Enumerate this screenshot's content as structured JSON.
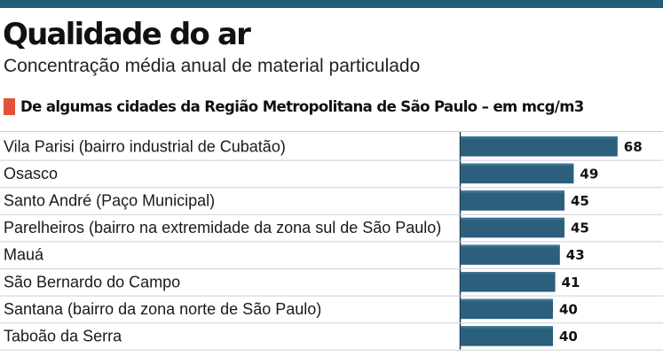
{
  "header": {
    "title": "Qualidade do ar",
    "subtitle": "Concentração média anual de material particulado"
  },
  "section": {
    "label": "De algumas cidades da Região Metropolitana de São Paulo – em mcg/m3"
  },
  "colors": {
    "top_bar": "#1f5d78",
    "bar": "#2c5f7c",
    "bar_highlight": "#3a7493",
    "marker": "#e0533a",
    "separator": "#c9d1d6",
    "panel_edge": "#1f3f52"
  },
  "chart_data": {
    "type": "bar",
    "orientation": "horizontal",
    "title": "Qualidade do ar",
    "subtitle": "Concentração média anual de material particulado",
    "unit": "mcg/m3",
    "categories": [
      "Vila Parisi (bairro industrial de Cubatão)",
      "Osasco",
      "Santo André (Paço Municipal)",
      "Parelheiros (bairro na extremidade da zona sul de São Paulo)",
      "Mauá",
      "São Bernardo do Campo",
      "Santana (bairro da zona norte de São Paulo)",
      "Taboão da Serra"
    ],
    "values": [
      68,
      49,
      45,
      45,
      43,
      41,
      40,
      40
    ],
    "grid": false,
    "legend": "none"
  }
}
